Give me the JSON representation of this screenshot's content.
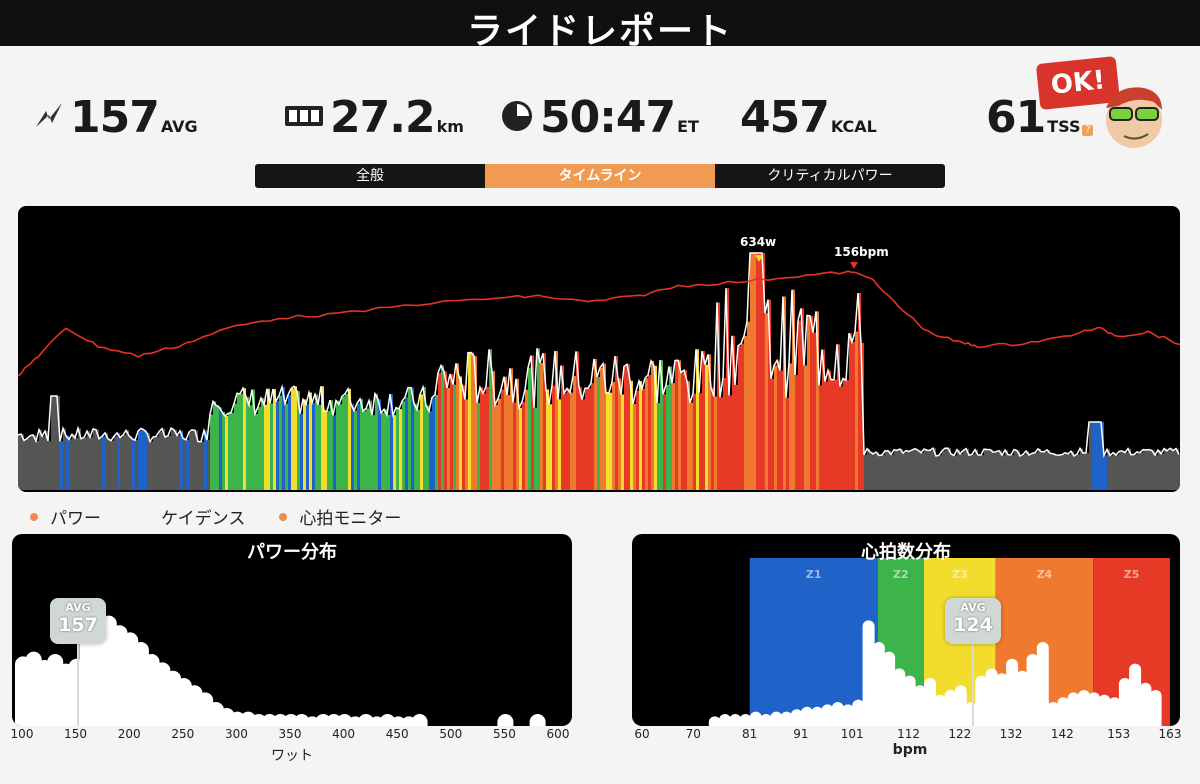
{
  "header": {
    "title": "ライドレポート"
  },
  "stats": {
    "power": {
      "value": "157",
      "unit": "AVG",
      "icon": "lightning-icon"
    },
    "distance": {
      "value": "27.2",
      "unit": "km",
      "icon": "odometer-icon"
    },
    "time": {
      "value": "50:47",
      "unit": "ET",
      "icon": "clock-icon"
    },
    "calories": {
      "value": "457",
      "unit": "KCAL"
    },
    "tss": {
      "value": "61",
      "unit": "TSS",
      "help": "?"
    }
  },
  "badge": {
    "text": "OK!",
    "icon": "avatar-sunglasses-icon"
  },
  "tabs": [
    {
      "label": "全般",
      "active": false
    },
    {
      "label": "タイムライン",
      "active": true
    },
    {
      "label": "クリティカルパワー",
      "active": false
    }
  ],
  "timeline": {
    "peak_power_label": "634w",
    "peak_hr_label": "156bpm"
  },
  "legend": [
    {
      "label": "パワー",
      "dot": true
    },
    {
      "label": "ケイデンス",
      "dot": false
    },
    {
      "label": "心拍モニター",
      "dot": true
    }
  ],
  "chart_data": [
    {
      "type": "bar",
      "title": "パワー分布",
      "xlabel": "ワット",
      "x_ticks": [
        "100",
        "150",
        "200",
        "250",
        "300",
        "350",
        "400",
        "450",
        "500",
        "550",
        "600"
      ],
      "xlim": [
        100,
        600
      ],
      "avg": {
        "label": "AVG",
        "value": "157",
        "x": 157
      },
      "bins_x": [
        100,
        110,
        120,
        130,
        140,
        150,
        160,
        170,
        180,
        190,
        200,
        210,
        220,
        230,
        240,
        250,
        260,
        270,
        280,
        290,
        300,
        310,
        320,
        330,
        340,
        350,
        360,
        370,
        380,
        390,
        400,
        410,
        420,
        430,
        440,
        450,
        460,
        470,
        550,
        580
      ],
      "bins_y": [
        0.58,
        0.62,
        0.55,
        0.6,
        0.52,
        0.56,
        0.8,
        0.86,
        0.92,
        0.84,
        0.78,
        0.7,
        0.6,
        0.53,
        0.46,
        0.4,
        0.34,
        0.28,
        0.2,
        0.15,
        0.12,
        0.12,
        0.1,
        0.1,
        0.1,
        0.1,
        0.1,
        0.08,
        0.1,
        0.1,
        0.1,
        0.08,
        0.1,
        0.08,
        0.1,
        0.08,
        0.08,
        0.1,
        0.1,
        0.1
      ]
    },
    {
      "type": "bar",
      "title": "心拍数分布",
      "xlabel": "bpm",
      "x_ticks": [
        "60",
        "70",
        "81",
        "91",
        "101",
        "112",
        "122",
        "132",
        "142",
        "153",
        "163"
      ],
      "xlim": [
        60,
        163
      ],
      "avg": {
        "label": "AVG",
        "value": "124",
        "x": 124
      },
      "zones": [
        {
          "name": "Z1",
          "from": 81,
          "to": 106,
          "color": "#1f63c9"
        },
        {
          "name": "Z2",
          "from": 106,
          "to": 115,
          "color": "#3cb44a"
        },
        {
          "name": "Z3",
          "from": 115,
          "to": 129,
          "color": "#f2dd2c"
        },
        {
          "name": "Z4",
          "from": 129,
          "to": 148,
          "color": "#ef7a2f"
        },
        {
          "name": "Z5",
          "from": 148,
          "to": 163,
          "color": "#e63a26"
        }
      ],
      "bins_x": [
        74,
        76,
        78,
        80,
        82,
        84,
        86,
        88,
        90,
        92,
        94,
        96,
        98,
        100,
        102,
        104,
        106,
        108,
        110,
        112,
        114,
        116,
        118,
        120,
        122,
        124,
        126,
        128,
        130,
        132,
        134,
        136,
        138,
        140,
        142,
        144,
        146,
        148,
        150,
        152,
        154,
        156,
        158,
        160
      ],
      "bins_y": [
        0.08,
        0.1,
        0.1,
        0.1,
        0.12,
        0.1,
        0.12,
        0.12,
        0.14,
        0.16,
        0.16,
        0.18,
        0.2,
        0.18,
        0.22,
        0.88,
        0.7,
        0.62,
        0.48,
        0.42,
        0.34,
        0.4,
        0.26,
        0.3,
        0.34,
        0.2,
        0.42,
        0.48,
        0.44,
        0.56,
        0.46,
        0.6,
        0.7,
        0.2,
        0.24,
        0.28,
        0.3,
        0.28,
        0.26,
        0.24,
        0.4,
        0.52,
        0.36,
        0.3
      ]
    }
  ],
  "colors": {
    "accent": "#f09a52",
    "hr_line": "#e53224",
    "panel_bg": "#000000"
  }
}
